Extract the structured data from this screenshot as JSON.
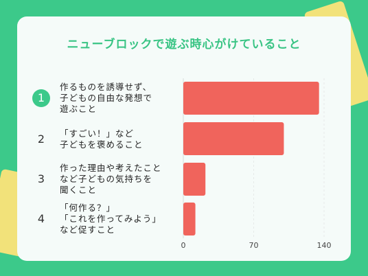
{
  "title": "ニューブロックで遊ぶ時心がけていること",
  "chart_data": {
    "type": "bar",
    "orientation": "horizontal",
    "categories": [
      "作るものを誘導せず、\n子どもの自由な発想で\n遊ぶこと",
      "「すごい！」など\n子どもを褒めること",
      "作った理由や考えたこと\nなど子どもの気持ちを\n聞くこと",
      "「何作る？」\n「これを作ってみよう」\nなど促すこと"
    ],
    "ranks": [
      "1",
      "2",
      "3",
      "4"
    ],
    "values": [
      135,
      100,
      22,
      12
    ],
    "xlim": [
      0,
      140
    ],
    "xticks": [
      "0",
      "70",
      "140"
    ],
    "bar_color": "#f0645c",
    "accent": "#3cc98a",
    "grid": true
  }
}
